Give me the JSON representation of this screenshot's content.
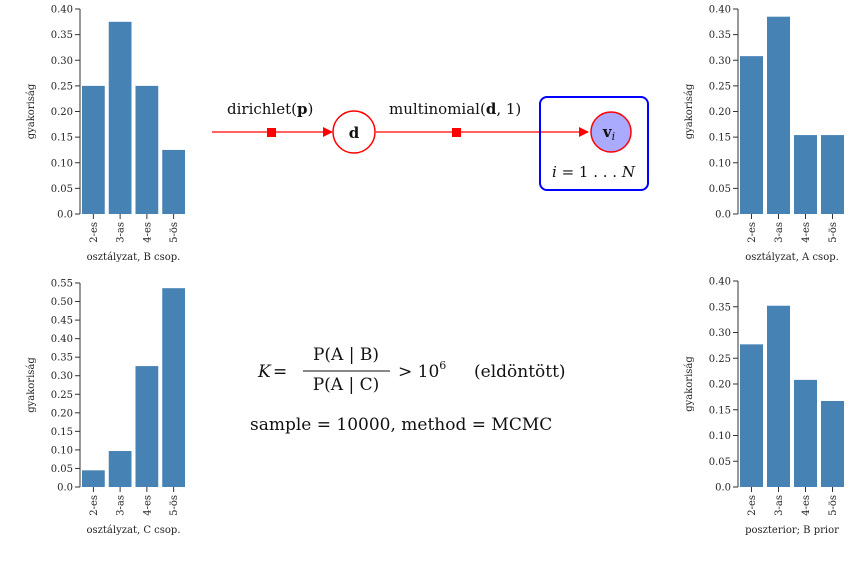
{
  "chart_data": [
    {
      "type": "bar",
      "categories": [
        "2-es",
        "3-as",
        "4-es",
        "5-ös"
      ],
      "values": [
        0.25,
        0.375,
        0.25,
        0.125
      ],
      "xlabel": "osztályzat, B csop.",
      "ylabel": "gyakoriság",
      "ylim": [
        0,
        0.4
      ],
      "yticks": [
        "0.0",
        "0.05",
        "0.10",
        "0.15",
        "0.20",
        "0.25",
        "0.30",
        "0.35",
        "0.40"
      ],
      "grid": false
    },
    {
      "type": "bar",
      "categories": [
        "2-es",
        "3-as",
        "4-es",
        "5-ös"
      ],
      "values": [
        0.308,
        0.385,
        0.154,
        0.154
      ],
      "xlabel": "osztályzat, A csop.",
      "ylabel": "gyakoriság",
      "ylim": [
        0,
        0.4
      ],
      "yticks": [
        "0.0",
        "0.05",
        "0.10",
        "0.15",
        "0.20",
        "0.25",
        "0.30",
        "0.35",
        "0.40"
      ],
      "grid": false
    },
    {
      "type": "bar",
      "categories": [
        "2-es",
        "3-as",
        "4-es",
        "5-ös"
      ],
      "values": [
        0.045,
        0.097,
        0.326,
        0.536
      ],
      "xlabel": "osztályzat, C csop.",
      "ylabel": "gyakoriság",
      "ylim": [
        0,
        0.55
      ],
      "yticks": [
        "0.0",
        "0.05",
        "0.10",
        "0.15",
        "0.20",
        "0.25",
        "0.30",
        "0.35",
        "0.40",
        "0.45",
        "0.50",
        "0.55"
      ],
      "grid": false
    },
    {
      "type": "bar",
      "categories": [
        "2-es",
        "3-as",
        "4-es",
        "5-ös"
      ],
      "values": [
        0.277,
        0.352,
        0.208,
        0.167
      ],
      "xlabel": "poszterior; B prior",
      "ylabel": "gyakoriság",
      "ylim": [
        0,
        0.4
      ],
      "yticks": [
        "0.0",
        "0.05",
        "0.10",
        "0.15",
        "0.20",
        "0.25",
        "0.30",
        "0.35",
        "0.40"
      ],
      "grid": false
    }
  ],
  "diagram": {
    "edge1_label_fn": "dirichlet(",
    "edge1_label_arg": "p",
    "edge1_label_close": ")",
    "node_d": "d",
    "edge2_label_fn": "multinomial(",
    "edge2_label_arg": "d",
    "edge2_label_rest": ", 1)",
    "node_v": "v",
    "node_v_sub": "i",
    "plate_label_var": "i",
    "plate_label_rest": " = 1 . . . ",
    "plate_label_n": "N",
    "colors": {
      "edge": "#ff0000",
      "plate": "#0000ff",
      "node_fill": "#aaaaff"
    }
  },
  "formula": {
    "lhs": "K",
    "eq": " = ",
    "numerator": "P(A | B)",
    "denominator": "P(A | C)",
    "rel": "> 10",
    "exp": "6",
    "note": "(eldöntött)",
    "sample_line": "sample = 10000,  method = MCMC"
  }
}
